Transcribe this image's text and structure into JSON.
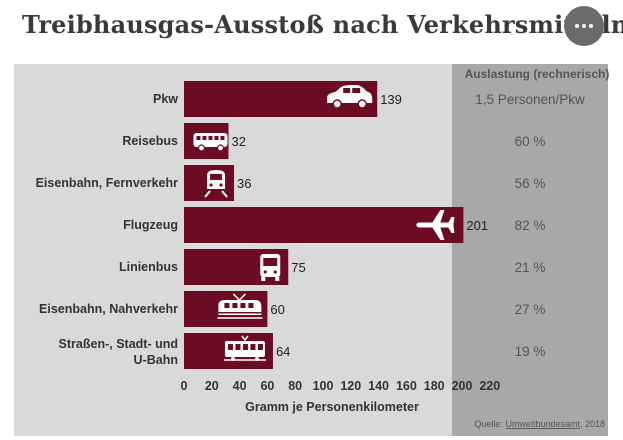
{
  "header": {
    "title": "Treibhausgas-Ausstoß nach Verkehrsmitteln",
    "menu_icon": "more-horizontal-icon"
  },
  "side_panel": {
    "header": "Auslastung (rechnerisch)"
  },
  "source": {
    "prefix": "Quelle: ",
    "link": "Umweltbundesamt",
    "suffix": ", 2018"
  },
  "colors": {
    "bar": "#6b0c23",
    "plot_bg": "#d9d9d9",
    "side_bg": "#a8a8a8"
  },
  "chart_data": {
    "type": "bar",
    "orientation": "horizontal",
    "title": "Treibhausgas-Ausstoß nach Verkehrsmitteln",
    "xlabel": "Gramm je Personenkilometer",
    "ylabel": "",
    "xlim": [
      0,
      220
    ],
    "xticks": [
      0,
      20,
      40,
      60,
      80,
      100,
      120,
      140,
      160,
      180,
      200,
      220
    ],
    "categories": [
      "Pkw",
      "Reisebus",
      "Eisenbahn, Fernverkehr",
      "Flugzeug",
      "Linienbus",
      "Eisenbahn, Nahverkehr",
      "Straßen-, Stadt- und U-Bahn"
    ],
    "values": [
      139,
      32,
      36,
      201,
      75,
      60,
      64
    ],
    "auslastung": [
      "1,5 Personen/Pkw",
      "60 %",
      "56 %",
      "82 %",
      "21 %",
      "27 %",
      "19 %"
    ],
    "icons": [
      "car-icon",
      "coach-bus-icon",
      "long-distance-train-icon",
      "airplane-icon",
      "city-bus-icon",
      "regional-train-icon",
      "tram-icon"
    ],
    "grid": false
  }
}
